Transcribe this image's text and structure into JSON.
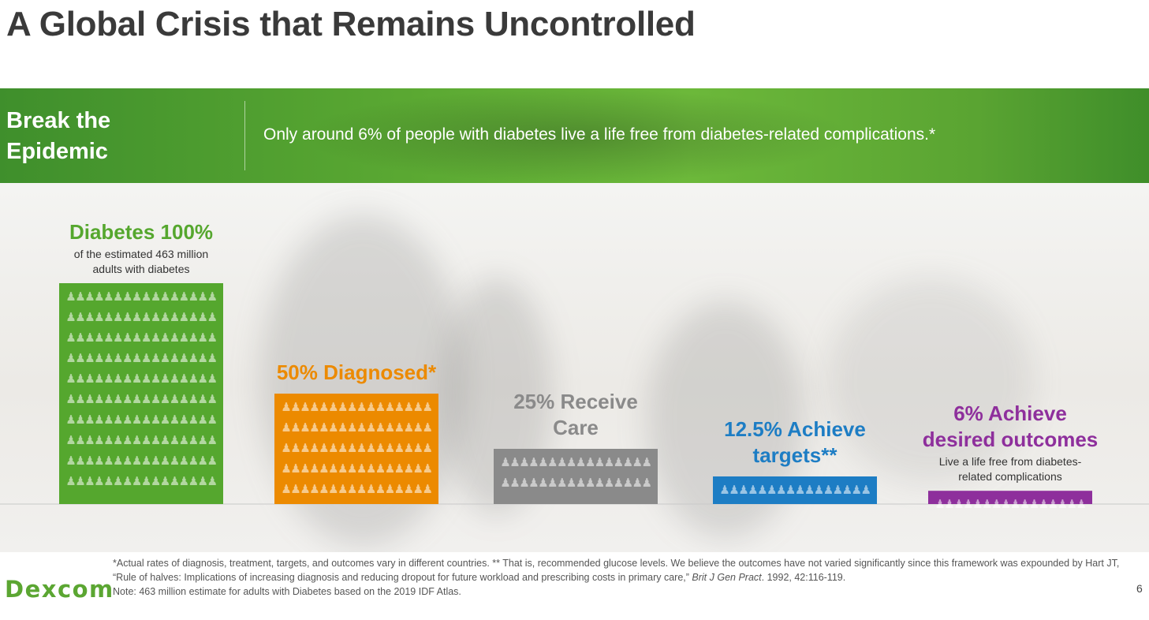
{
  "title": "A Global Crisis that Remains Uncontrolled",
  "banner": {
    "left_line1": "Break the",
    "left_line2": "Epidemic",
    "message": "Only around 6% of people with diabetes live a life free from diabetes-related complications.*"
  },
  "chart_data": {
    "type": "bar",
    "title": "",
    "xlabel": "",
    "ylabel": "",
    "ylim": [
      0,
      100
    ],
    "categories": [
      "Diabetes 100%",
      "50% Diagnosed*",
      "25% Receive Care",
      "12.5% Achieve targets**",
      "6% Achieve desired outcomes"
    ],
    "values": [
      100,
      50,
      25,
      12.5,
      6
    ],
    "labels": [
      {
        "lines": [
          "Diabetes 100%"
        ],
        "sub": [
          "of the estimated 463 million",
          "adults with diabetes"
        ]
      },
      {
        "lines": [
          "50% Diagnosed*"
        ],
        "sub": []
      },
      {
        "lines": [
          "25% Receive",
          "Care"
        ],
        "sub": []
      },
      {
        "lines": [
          "12.5% Achieve",
          "targets**"
        ],
        "sub": []
      },
      {
        "lines": [
          "6% Achieve",
          "desired outcomes"
        ],
        "sub": [
          "Live a life free from diabetes-",
          "related complications"
        ]
      }
    ],
    "colors": [
      "#55a72e",
      "#ec8a00",
      "#8a8a8a",
      "#1d7dc4",
      "#8e2f9c"
    ],
    "label_colors": [
      "#55a72e",
      "#ec8a00",
      "#8a8a8a",
      "#1d7dc4",
      "#8e2f9c"
    ]
  },
  "footer": {
    "logo": "Dexcom",
    "note_part1": "*Actual rates of diagnosis, treatment, targets, and outcomes vary in different countries. ** That is, recommended glucose levels. We believe the outcomes have not varied significantly since this framework was expounded by Hart JT, “Rule of halves: Implications of increasing diagnosis and reducing dropout for future workload and prescribing costs in primary care,” ",
    "note_italic1": "Brit J Gen Pract",
    "note_part2": ". 1992, 42:116-119.",
    "note_line2": "Note: 463 million estimate for adults with Diabetes based on the 2019 IDF Atlas.",
    "page_number": "6"
  }
}
